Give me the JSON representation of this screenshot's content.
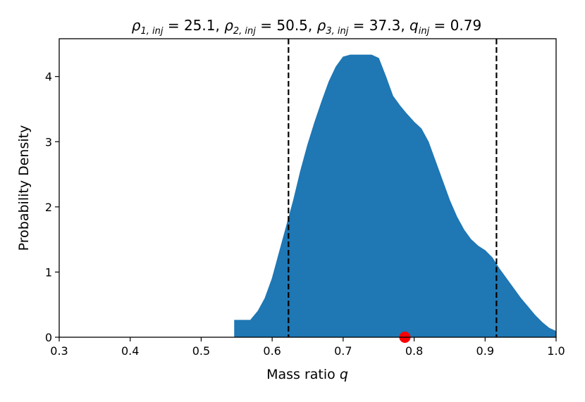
{
  "chart_data": {
    "type": "area",
    "title": {
      "rho1_symbol": "ρ",
      "rho1_sub": "1, inj",
      "rho1_value": " = 25.1, ",
      "rho2_symbol": "ρ",
      "rho2_sub": "2, inj",
      "rho2_value": " = 50.5, ",
      "rho3_symbol": "ρ",
      "rho3_sub": "3, inj",
      "rho3_value": " = 37.3, ",
      "q_symbol": "q",
      "q_sub": "inj",
      "q_value": " = 0.79"
    },
    "xlabel": "Mass ratio ",
    "xlabel_symbol": "q",
    "ylabel": "Probability Density",
    "xlim": [
      0.3,
      1.0
    ],
    "ylim": [
      0,
      4.58
    ],
    "xticks": [
      0.3,
      0.4,
      0.5,
      0.6,
      0.7,
      0.8,
      0.9,
      1.0
    ],
    "xtick_labels": [
      "0.3",
      "0.4",
      "0.5",
      "0.6",
      "0.7",
      "0.8",
      "0.9",
      "1.0"
    ],
    "yticks": [
      0,
      1,
      2,
      3,
      4
    ],
    "ytick_labels": [
      "0",
      "1",
      "2",
      "3",
      "4"
    ],
    "grid": false,
    "legend": "none",
    "series": [
      {
        "fill_color": "#1f77b4",
        "x": [
          0.547,
          0.547,
          0.57,
          0.57,
          0.58,
          0.59,
          0.6,
          0.61,
          0.62,
          0.63,
          0.64,
          0.65,
          0.66,
          0.67,
          0.68,
          0.69,
          0.7,
          0.71,
          0.72,
          0.73,
          0.74,
          0.75,
          0.76,
          0.77,
          0.78,
          0.79,
          0.8,
          0.81,
          0.82,
          0.83,
          0.84,
          0.85,
          0.86,
          0.87,
          0.88,
          0.89,
          0.9,
          0.91,
          0.92,
          0.93,
          0.94,
          0.95,
          0.96,
          0.97,
          0.98,
          0.99,
          1.0,
          1.0
        ],
        "y": [
          0,
          0.26,
          0.26,
          0.27,
          0.4,
          0.6,
          0.9,
          1.3,
          1.7,
          2.1,
          2.55,
          2.95,
          3.3,
          3.62,
          3.92,
          4.15,
          4.3,
          4.33,
          4.33,
          4.33,
          4.33,
          4.28,
          4.0,
          3.7,
          3.55,
          3.42,
          3.3,
          3.2,
          3.0,
          2.7,
          2.4,
          2.1,
          1.85,
          1.65,
          1.5,
          1.4,
          1.33,
          1.22,
          1.05,
          0.9,
          0.75,
          0.6,
          0.47,
          0.34,
          0.23,
          0.14,
          0.09,
          0
        ]
      }
    ],
    "vlines": {
      "x": [
        0.623,
        0.916
      ],
      "color": "#000000",
      "style": "dashed"
    },
    "marker": {
      "x": 0.787,
      "y": 0,
      "color": "#ff0000"
    }
  }
}
